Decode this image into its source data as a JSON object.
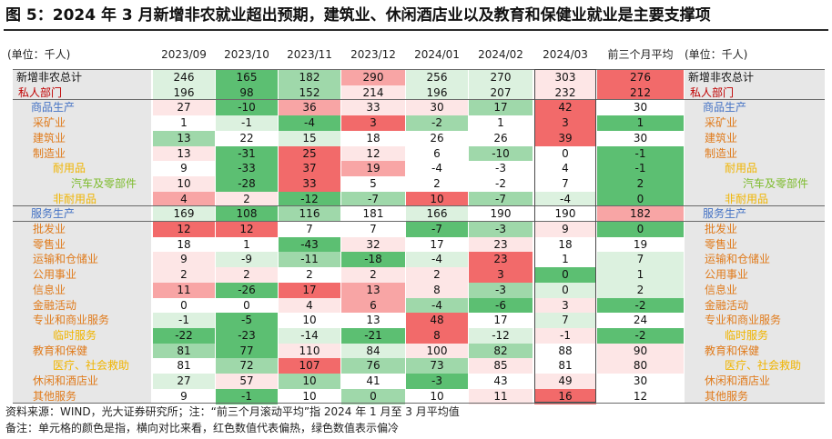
{
  "title": "图 5：2024 年 3 月新增非农就业超出预期，建筑业、休闲酒店业以及教育和保健业就业是主要支撑项",
  "unit_label": "(单位：千人)",
  "columns": [
    "2023/09",
    "2023/10",
    "2023/11",
    "2023/12",
    "2024/01",
    "2024/02",
    "2024/03",
    "前三个月平均"
  ],
  "colors": {
    "red_strong": "#f26a6a",
    "red_medium": "#f8a5a5",
    "red_light": "#fde6e6",
    "green_strong": "#5cbf72",
    "green_medium": "#9fd8aa",
    "green_light": "#dcf1df",
    "label_black": "#111111",
    "label_red": "#c00000",
    "label_blue": "#4472c4",
    "label_orange": "#e07b1c",
    "label_gold": "#f0b400",
    "label_olive": "#7dbb2c"
  },
  "rows": [
    {
      "label": "新增非农总计",
      "indent": 0,
      "color": "black",
      "values": [
        "246",
        "165",
        "182",
        "290",
        "256",
        "270",
        "303",
        "276"
      ],
      "shade": [
        "gl",
        "gs",
        "gm",
        "rm",
        "gl",
        "gl",
        "rl",
        "rs"
      ]
    },
    {
      "label": "私人部门",
      "indent": 1,
      "color": "red",
      "values": [
        "196",
        "98",
        "152",
        "214",
        "196",
        "207",
        "232",
        "212"
      ],
      "shade": [
        "gl",
        "gs",
        "gm",
        "rl",
        "gl",
        "gl",
        "rl",
        "rs"
      ]
    },
    {
      "label": "商品生产",
      "indent": 2,
      "color": "blue",
      "values": [
        "27",
        "-10",
        "36",
        "33",
        "30",
        "17",
        "42",
        "30"
      ],
      "shade": [
        "rl",
        "gs",
        "rm",
        "rl",
        "rl",
        "gm",
        "rs",
        "w"
      ]
    },
    {
      "label": "采矿业",
      "indent": 3,
      "color": "orange",
      "values": [
        "1",
        "-1",
        "-4",
        "3",
        "-2",
        "1",
        "3",
        "1"
      ],
      "shade": [
        "w",
        "gl",
        "gs",
        "rs",
        "gm",
        "w",
        "rs",
        "gs"
      ]
    },
    {
      "label": "建筑业",
      "indent": 3,
      "color": "orange",
      "values": [
        "13",
        "22",
        "15",
        "18",
        "26",
        "26",
        "39",
        "30"
      ],
      "shade": [
        "gm",
        "w",
        "gl",
        "w",
        "w",
        "w",
        "rs",
        "w"
      ]
    },
    {
      "label": "制造业",
      "indent": 3,
      "color": "orange",
      "values": [
        "13",
        "-31",
        "25",
        "12",
        "6",
        "-10",
        "0",
        "-1"
      ],
      "shade": [
        "rl",
        "gs",
        "rs",
        "rl",
        "w",
        "gm",
        "w",
        "gs"
      ]
    },
    {
      "label": "耐用品",
      "indent": 4,
      "color": "gold",
      "values": [
        "9",
        "-33",
        "37",
        "19",
        "-4",
        "-3",
        "4",
        "-1"
      ],
      "shade": [
        "w",
        "gs",
        "rs",
        "rm",
        "w",
        "w",
        "w",
        "gs"
      ]
    },
    {
      "label": "汽车及零部件",
      "indent": 5,
      "color": "olive",
      "values": [
        "10",
        "-28",
        "33",
        "5",
        "2",
        "-2",
        "7",
        "2"
      ],
      "shade": [
        "rl",
        "gs",
        "rs",
        "w",
        "w",
        "w",
        "w",
        "gs"
      ]
    },
    {
      "label": "非耐用品",
      "indent": 4,
      "color": "gold",
      "values": [
        "4",
        "2",
        "-12",
        "-7",
        "10",
        "-7",
        "-4",
        "0"
      ],
      "shade": [
        "rm",
        "rl",
        "gs",
        "gm",
        "rs",
        "gm",
        "gl",
        "gs"
      ]
    },
    {
      "label": "服务生产",
      "indent": 2,
      "color": "blue",
      "values": [
        "169",
        "108",
        "116",
        "181",
        "166",
        "190",
        "190",
        "182"
      ],
      "shade": [
        "gl",
        "gs",
        "gm",
        "w",
        "gl",
        "w",
        "w",
        "rm"
      ]
    },
    {
      "label": "批发业",
      "indent": 3,
      "color": "orange",
      "values": [
        "12",
        "12",
        "7",
        "7",
        "-7",
        "-3",
        "9",
        "0"
      ],
      "shade": [
        "rs",
        "rs",
        "w",
        "w",
        "gs",
        "gm",
        "rl",
        "gs"
      ]
    },
    {
      "label": "零售业",
      "indent": 3,
      "color": "orange",
      "values": [
        "18",
        "1",
        "-43",
        "32",
        "17",
        "23",
        "18",
        "19"
      ],
      "shade": [
        "w",
        "w",
        "gs",
        "rl",
        "w",
        "rl",
        "w",
        "w"
      ]
    },
    {
      "label": "运输和仓储业",
      "indent": 3,
      "color": "orange",
      "values": [
        "9",
        "-9",
        "-11",
        "-18",
        "-4",
        "23",
        "1",
        "7"
      ],
      "shade": [
        "rl",
        "gl",
        "gm",
        "gs",
        "gl",
        "rs",
        "w",
        "gl"
      ]
    },
    {
      "label": "公用事业",
      "indent": 3,
      "color": "orange",
      "values": [
        "2",
        "2",
        "2",
        "2",
        "2",
        "3",
        "0",
        "1"
      ],
      "shade": [
        "rl",
        "rl",
        "w",
        "rl",
        "rl",
        "rs",
        "gs",
        "gl"
      ]
    },
    {
      "label": "信息业",
      "indent": 3,
      "color": "orange",
      "values": [
        "11",
        "-26",
        "17",
        "13",
        "8",
        "-3",
        "0",
        "2"
      ],
      "shade": [
        "rm",
        "gs",
        "rs",
        "rm",
        "rl",
        "gm",
        "gl",
        "gl"
      ]
    },
    {
      "label": "金融活动",
      "indent": 3,
      "color": "orange",
      "values": [
        "0",
        "0",
        "4",
        "6",
        "-4",
        "-6",
        "3",
        "-2"
      ],
      "shade": [
        "w",
        "w",
        "rl",
        "rm",
        "gm",
        "gs",
        "rl",
        "gs"
      ]
    },
    {
      "label": "专业和商业服务",
      "indent": 3,
      "color": "orange",
      "values": [
        "-1",
        "-5",
        "10",
        "13",
        "48",
        "17",
        "7",
        "24"
      ],
      "shade": [
        "gl",
        "gs",
        "w",
        "w",
        "rs",
        "w",
        "gl",
        "w"
      ]
    },
    {
      "label": "临时服务",
      "indent": 4,
      "color": "gold",
      "values": [
        "-22",
        "-23",
        "-14",
        "-21",
        "8",
        "-12",
        "-1",
        "-2"
      ],
      "shade": [
        "gs",
        "gs",
        "gl",
        "gs",
        "rs",
        "gl",
        "rl",
        "gs"
      ]
    },
    {
      "label": "教育和保健",
      "indent": 3,
      "color": "orange",
      "values": [
        "81",
        "77",
        "110",
        "84",
        "100",
        "82",
        "88",
        "90"
      ],
      "shade": [
        "gm",
        "gs",
        "rl",
        "gl",
        "rl",
        "gm",
        "w",
        "rl"
      ]
    },
    {
      "label": "医疗、社会救助",
      "indent": 4,
      "color": "gold",
      "values": [
        "81",
        "72",
        "107",
        "76",
        "73",
        "85",
        "81",
        "80"
      ],
      "shade": [
        "w",
        "gm",
        "rs",
        "gm",
        "gm",
        "rl",
        "w",
        "rl"
      ]
    },
    {
      "label": "休闲和酒店业",
      "indent": 3,
      "color": "orange",
      "values": [
        "27",
        "57",
        "10",
        "41",
        "-3",
        "43",
        "49",
        "30"
      ],
      "shade": [
        "gl",
        "rl",
        "gm",
        "w",
        "gs",
        "w",
        "rl",
        "w"
      ]
    },
    {
      "label": "其他服务",
      "indent": 3,
      "color": "orange",
      "values": [
        "9",
        "-1",
        "10",
        "0",
        "10",
        "11",
        "16",
        "12"
      ],
      "shade": [
        "w",
        "gs",
        "w",
        "gm",
        "w",
        "rl",
        "rs",
        "w"
      ]
    }
  ],
  "footnotes": [
    "资料来源：WIND，光大证券研究所；注：“前三个月滚动平均”指 2024 年 1 月至 3 月平均值",
    "备注：单元格的颜色是指，横向对比来看，红色数值代表偏热，绿色数值表示偏冷"
  ]
}
